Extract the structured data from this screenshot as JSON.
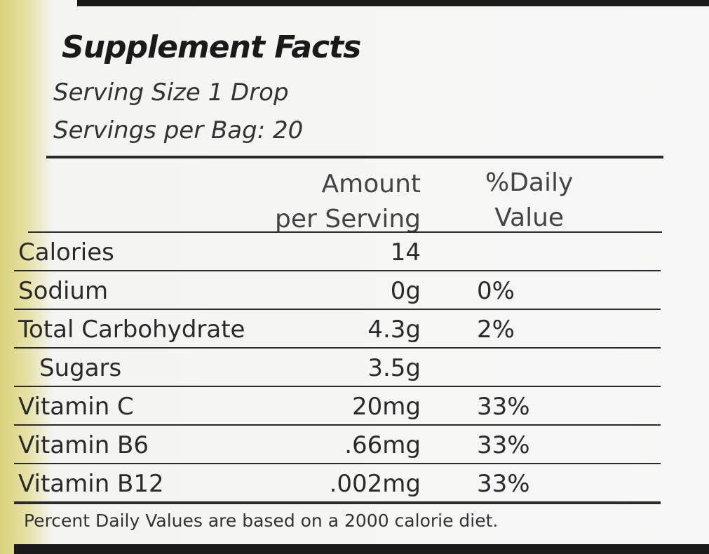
{
  "title": "Supplement Facts",
  "serving_size": "Serving Size 1 Drop",
  "servings_per_bag": "Servings per Bag: 20",
  "header": {
    "amount": [
      "Amount",
      "per Serving"
    ],
    "daily_value": [
      "%Daily",
      "Value"
    ]
  },
  "rows": [
    [
      "Calories",
      "14",
      null
    ],
    [
      "Sodium",
      "0g",
      "0%"
    ],
    [
      "Total Carbohydrate",
      "4.3g",
      "2%"
    ],
    [
      "Sugars",
      "3.5g",
      null
    ],
    [
      "Vitamin C",
      "20mg",
      "33%"
    ],
    [
      "Vitamin B6",
      ".66mg",
      "33%"
    ],
    [
      "Vitamin B12",
      ".002mg",
      "33%"
    ]
  ],
  "footnote": "Percent Daily Values are based on a 2000 calorie diet."
}
